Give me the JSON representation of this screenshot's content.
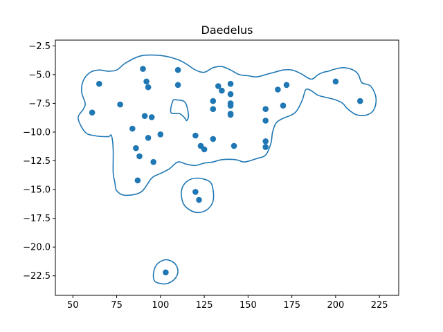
{
  "chart_data": {
    "type": "scatter",
    "title": "Daedelus",
    "xlabel": "",
    "ylabel": "",
    "xlim": [
      40,
      236
    ],
    "ylim": [
      -24.2,
      -2.0
    ],
    "xticks": [
      50,
      75,
      100,
      125,
      150,
      175,
      200,
      225
    ],
    "yticks": [
      -2.5,
      -5.0,
      -7.5,
      -10.0,
      -12.5,
      -15.0,
      -17.5,
      -20.0,
      -22.5
    ],
    "xtick_labels": [
      "50",
      "75",
      "100",
      "125",
      "150",
      "175",
      "200",
      "225"
    ],
    "ytick_labels": [
      "−2.5",
      "−5.0",
      "−7.5",
      "−10.0",
      "−12.5",
      "−15.0",
      "−17.5",
      "−20.0",
      "−22.5"
    ],
    "grid": false,
    "point_color": "#1f77b4",
    "contour_color": "#1f77b4",
    "points": [
      {
        "x": 61,
        "y": -8.3
      },
      {
        "x": 65,
        "y": -5.8
      },
      {
        "x": 77,
        "y": -7.6
      },
      {
        "x": 84,
        "y": -9.7
      },
      {
        "x": 86,
        "y": -11.4
      },
      {
        "x": 87,
        "y": -14.2
      },
      {
        "x": 88,
        "y": -12.1
      },
      {
        "x": 90,
        "y": -4.5
      },
      {
        "x": 91,
        "y": -8.6
      },
      {
        "x": 92,
        "y": -5.6
      },
      {
        "x": 93,
        "y": -6.1
      },
      {
        "x": 93,
        "y": -10.5
      },
      {
        "x": 95,
        "y": -8.7
      },
      {
        "x": 96,
        "y": -12.6
      },
      {
        "x": 100,
        "y": -10.2
      },
      {
        "x": 110,
        "y": -4.6
      },
      {
        "x": 110,
        "y": -5.9
      },
      {
        "x": 120,
        "y": -10.3
      },
      {
        "x": 120,
        "y": -15.2
      },
      {
        "x": 122,
        "y": -15.9
      },
      {
        "x": 123,
        "y": -11.2
      },
      {
        "x": 125,
        "y": -11.5
      },
      {
        "x": 130,
        "y": -7.3
      },
      {
        "x": 130,
        "y": -8.0
      },
      {
        "x": 130,
        "y": -10.6
      },
      {
        "x": 133,
        "y": -6.0
      },
      {
        "x": 135,
        "y": -6.4
      },
      {
        "x": 140,
        "y": -5.8
      },
      {
        "x": 140,
        "y": -6.7
      },
      {
        "x": 140,
        "y": -7.5
      },
      {
        "x": 140,
        "y": -7.7
      },
      {
        "x": 140,
        "y": -8.4
      },
      {
        "x": 140,
        "y": -8.5
      },
      {
        "x": 142,
        "y": -11.2
      },
      {
        "x": 160,
        "y": -8.0
      },
      {
        "x": 160,
        "y": -9.0
      },
      {
        "x": 160,
        "y": -10.8
      },
      {
        "x": 160,
        "y": -11.3
      },
      {
        "x": 167,
        "y": -6.3
      },
      {
        "x": 170,
        "y": -7.7
      },
      {
        "x": 172,
        "y": -5.9
      },
      {
        "x": 200,
        "y": -5.6
      },
      {
        "x": 214,
        "y": -7.3
      },
      {
        "x": 103,
        "y": -22.2
      }
    ],
    "contours": [
      [
        [
          56,
          -8.0
        ],
        [
          53,
          -8.8
        ],
        [
          57,
          -10.0
        ],
        [
          62,
          -10.3
        ],
        [
          70,
          -10.4
        ],
        [
          72,
          -10.3
        ],
        [
          73,
          -11.5
        ],
        [
          73,
          -13.5
        ],
        [
          74,
          -14.4
        ],
        [
          75,
          -15.1
        ],
        [
          80,
          -15.5
        ],
        [
          89,
          -15.2
        ],
        [
          95,
          -14.0
        ],
        [
          100,
          -13.6
        ],
        [
          105,
          -13.2
        ],
        [
          110,
          -12.6
        ],
        [
          115,
          -12.8
        ],
        [
          120,
          -12.9
        ],
        [
          125,
          -12.7
        ],
        [
          130,
          -12.6
        ],
        [
          135,
          -12.4
        ],
        [
          143,
          -12.4
        ],
        [
          148,
          -12.6
        ],
        [
          155,
          -12.3
        ],
        [
          160,
          -12.0
        ],
        [
          163,
          -11.0
        ],
        [
          164,
          -10.0
        ],
        [
          166,
          -9.2
        ],
        [
          170,
          -8.8
        ],
        [
          175,
          -8.5
        ],
        [
          178,
          -8.1
        ],
        [
          181,
          -7.2
        ],
        [
          183,
          -6.3
        ],
        [
          186,
          -6.4
        ],
        [
          190,
          -6.8
        ],
        [
          195,
          -7.0
        ],
        [
          200,
          -7.2
        ],
        [
          204,
          -7.5
        ],
        [
          207,
          -8.0
        ],
        [
          212,
          -8.5
        ],
        [
          218,
          -8.5
        ],
        [
          222,
          -8.0
        ],
        [
          223,
          -7.0
        ],
        [
          220,
          -6.0
        ],
        [
          215,
          -5.7
        ],
        [
          213,
          -5.0
        ],
        [
          210,
          -4.6
        ],
        [
          205,
          -4.4
        ],
        [
          200,
          -4.5
        ],
        [
          196,
          -4.7
        ],
        [
          193,
          -4.8
        ],
        [
          190,
          -5.0
        ],
        [
          186,
          -5.4
        ],
        [
          180,
          -4.9
        ],
        [
          175,
          -4.6
        ],
        [
          170,
          -4.6
        ],
        [
          165,
          -4.8
        ],
        [
          160,
          -5.0
        ],
        [
          155,
          -5.2
        ],
        [
          150,
          -5.1
        ],
        [
          145,
          -5.0
        ],
        [
          140,
          -4.6
        ],
        [
          135,
          -4.3
        ],
        [
          130,
          -4.4
        ],
        [
          125,
          -4.8
        ],
        [
          120,
          -4.6
        ],
        [
          115,
          -4.1
        ],
        [
          110,
          -3.7
        ],
        [
          103,
          -3.4
        ],
        [
          95,
          -3.3
        ],
        [
          88,
          -3.4
        ],
        [
          80,
          -4.0
        ],
        [
          75,
          -4.6
        ],
        [
          70,
          -4.7
        ],
        [
          65,
          -4.6
        ],
        [
          60,
          -4.8
        ],
        [
          56,
          -5.5
        ],
        [
          55,
          -6.5
        ],
        [
          57,
          -7.5
        ],
        [
          56,
          -8.0
        ]
      ],
      [
        [
          106,
          -8.3
        ],
        [
          107,
          -7.3
        ],
        [
          109,
          -7.2
        ],
        [
          114,
          -7.4
        ],
        [
          116,
          -8.5
        ],
        [
          115,
          -9.0
        ],
        [
          114,
          -8.8
        ],
        [
          111,
          -8.4
        ],
        [
          106,
          -8.3
        ]
      ],
      [
        [
          121,
          -14.0
        ],
        [
          115,
          -14.3
        ],
        [
          112,
          -15.1
        ],
        [
          113,
          -16.2
        ],
        [
          117,
          -16.8
        ],
        [
          122,
          -17.0
        ],
        [
          127,
          -16.7
        ],
        [
          130,
          -16.0
        ],
        [
          130,
          -15.0
        ],
        [
          128,
          -14.3
        ],
        [
          121,
          -14.0
        ]
      ],
      [
        [
          103,
          -21.1
        ],
        [
          98,
          -21.5
        ],
        [
          96,
          -22.3
        ],
        [
          97,
          -23.0
        ],
        [
          103,
          -23.2
        ],
        [
          108,
          -22.8
        ],
        [
          110,
          -22.1
        ],
        [
          108,
          -21.4
        ],
        [
          103,
          -21.1
        ]
      ]
    ]
  }
}
